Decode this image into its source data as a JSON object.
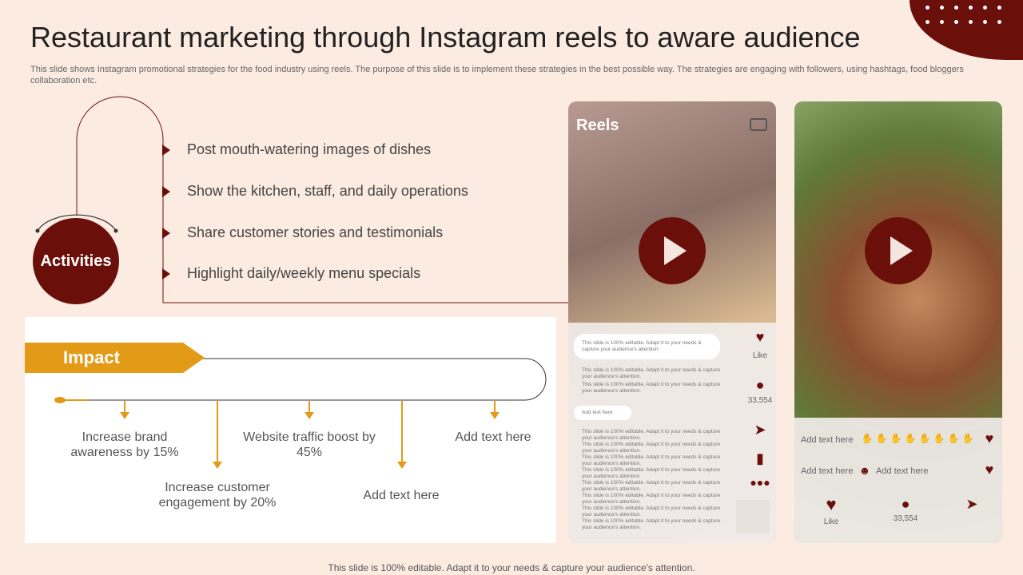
{
  "title": "Restaurant marketing through Instagram reels to aware audience",
  "subtitle": "This slide shows Instagram promotional strategies for the food industry using reels. The purpose of this slide is to implement these strategies in the best possible way. The strategies are engaging with followers, using hashtags, food bloggers collaboration etc.",
  "activities": {
    "label": "Activities",
    "items": [
      "Post mouth-watering images of dishes",
      "Show the kitchen, staff, and daily operations",
      "Share customer stories and testimonials",
      "Highlight daily/weekly menu specials"
    ]
  },
  "impact": {
    "label": "Impact",
    "items": [
      "Increase brand awareness by 15%",
      "Increase customer engagement by 20%",
      "Website traffic boost by 45%",
      "Add text here",
      "Add text here"
    ]
  },
  "reel1": {
    "title": "Reels",
    "bubble": "This slide is 100% editable.  Adapt it to your needs & capture your audience's attention.",
    "line": "This slide is 100% editable. Adapt it to your needs & capture your audience's attention.",
    "add": "Add text here",
    "like": "Like",
    "count": "33,554"
  },
  "reel2": {
    "add1": "Add text here",
    "add2": "Add text here",
    "add3": "Add text here",
    "like": "Like",
    "count": "33,554"
  },
  "colors": {
    "accent": "#6b0f0a",
    "orange": "#e39b17",
    "background": "#fcebe1"
  },
  "footer": "This slide is 100% editable. Adapt it to your needs & capture your audience's attention."
}
